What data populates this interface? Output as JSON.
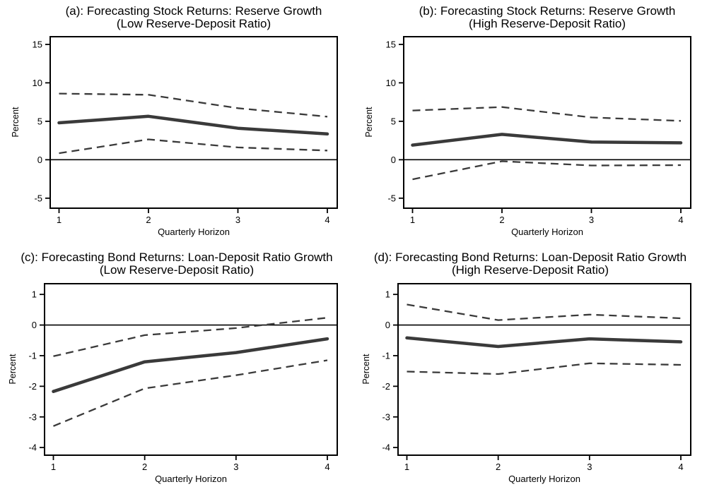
{
  "colors": {
    "line": "#3a3a3a",
    "axis": "#000000",
    "background": "#ffffff"
  },
  "chart_data": [
    {
      "type": "line",
      "panel": "a",
      "title": "(a): Forecasting Stock Returns: Reserve Growth",
      "subtitle": "(Low Reserve-Deposit Ratio)",
      "xlabel": "Quarterly Horizon",
      "ylabel": "Percent",
      "x": [
        1,
        2,
        3,
        4
      ],
      "xticks": [
        1,
        2,
        3,
        4
      ],
      "yticks": [
        15,
        10,
        5,
        0,
        -5
      ],
      "ylim": [
        -6.3,
        16.0
      ],
      "zero_line": true,
      "grid": false,
      "legend": "none",
      "series": [
        {
          "name": "point-estimate",
          "style": "solid-thick",
          "values": [
            4.8,
            5.65,
            4.1,
            3.35
          ]
        },
        {
          "name": "upper-band",
          "style": "dashed",
          "values": [
            8.6,
            8.45,
            6.7,
            5.6
          ]
        },
        {
          "name": "lower-band",
          "style": "dashed",
          "values": [
            0.85,
            2.65,
            1.6,
            1.2
          ]
        }
      ]
    },
    {
      "type": "line",
      "panel": "b",
      "title": "(b): Forecasting Stock Returns: Reserve Growth",
      "subtitle": "(High Reserve-Deposit Ratio)",
      "xlabel": "Quarterly Horizon",
      "ylabel": "Percent",
      "x": [
        1,
        2,
        3,
        4
      ],
      "xticks": [
        1,
        2,
        3,
        4
      ],
      "yticks": [
        15,
        10,
        5,
        0,
        -5
      ],
      "ylim": [
        -6.3,
        16.0
      ],
      "zero_line": true,
      "grid": false,
      "legend": "none",
      "series": [
        {
          "name": "point-estimate",
          "style": "solid-thick",
          "values": [
            1.9,
            3.3,
            2.3,
            2.2
          ]
        },
        {
          "name": "upper-band",
          "style": "dashed",
          "values": [
            6.4,
            6.85,
            5.5,
            5.05
          ]
        },
        {
          "name": "lower-band",
          "style": "dashed",
          "values": [
            -2.55,
            -0.2,
            -0.75,
            -0.7
          ]
        }
      ]
    },
    {
      "type": "line",
      "panel": "c",
      "title": "(c): Forecasting Bond Returns: Loan-Deposit Ratio Growth",
      "subtitle": "(Low Reserve-Deposit Ratio)",
      "xlabel": "Quarterly Horizon",
      "ylabel": "Percent",
      "x": [
        1,
        2,
        3,
        4
      ],
      "xticks": [
        1,
        2,
        3,
        4
      ],
      "yticks": [
        1,
        0,
        -1,
        -2,
        -3,
        -4
      ],
      "ylim": [
        -4.25,
        1.35
      ],
      "zero_line": true,
      "grid": false,
      "legend": "none",
      "series": [
        {
          "name": "point-estimate",
          "style": "solid-thick",
          "values": [
            -2.17,
            -1.2,
            -0.9,
            -0.45
          ]
        },
        {
          "name": "upper-band",
          "style": "dashed",
          "values": [
            -1.02,
            -0.33,
            -0.1,
            0.24
          ]
        },
        {
          "name": "lower-band",
          "style": "dashed",
          "values": [
            -3.3,
            -2.07,
            -1.64,
            -1.15
          ]
        }
      ]
    },
    {
      "type": "line",
      "panel": "d",
      "title": "(d): Forecasting Bond Returns: Loan-Deposit Ratio Growth",
      "subtitle": "(High Reserve-Deposit Ratio)",
      "xlabel": "Quarterly Horizon",
      "ylabel": "Percent",
      "x": [
        1,
        2,
        3,
        4
      ],
      "xticks": [
        1,
        2,
        3,
        4
      ],
      "yticks": [
        1,
        0,
        -1,
        -2,
        -3,
        -4
      ],
      "ylim": [
        -4.25,
        1.35
      ],
      "zero_line": true,
      "grid": false,
      "legend": "none",
      "series": [
        {
          "name": "point-estimate",
          "style": "solid-thick",
          "values": [
            -0.42,
            -0.7,
            -0.45,
            -0.55
          ]
        },
        {
          "name": "upper-band",
          "style": "dashed",
          "values": [
            0.67,
            0.16,
            0.34,
            0.22
          ]
        },
        {
          "name": "lower-band",
          "style": "dashed",
          "values": [
            -1.52,
            -1.6,
            -1.25,
            -1.3
          ]
        }
      ]
    }
  ]
}
